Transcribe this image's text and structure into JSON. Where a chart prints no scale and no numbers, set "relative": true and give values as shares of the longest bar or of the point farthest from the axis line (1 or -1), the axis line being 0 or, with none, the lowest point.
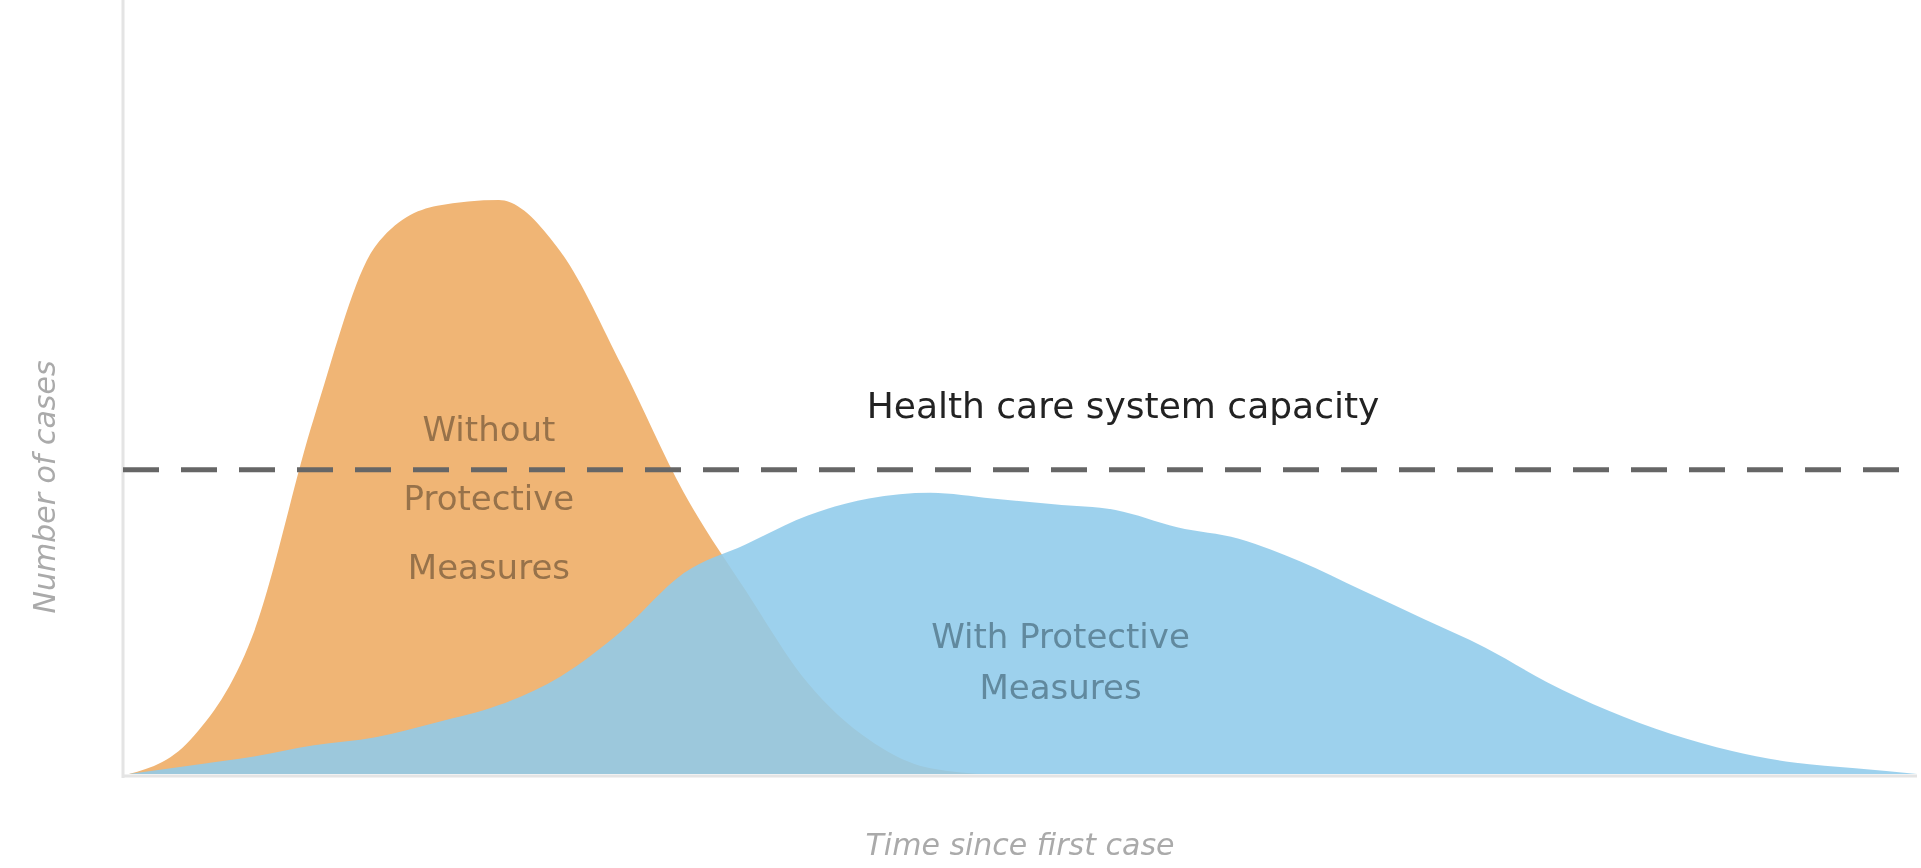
{
  "chart_data": {
    "type": "area",
    "relative": true,
    "xlabel": "Time since first case",
    "ylabel": "Number of cases",
    "categories": [
      null,
      null,
      null,
      null,
      null,
      null,
      null,
      null,
      null,
      null,
      null,
      null,
      null,
      null,
      null,
      null,
      null,
      null,
      null,
      null,
      null,
      null,
      null,
      null,
      null,
      null,
      null,
      null,
      null,
      null
    ],
    "series": [
      {
        "name": "Without Protective Measures",
        "color": "#f0b575",
        "values": [
          0,
          0.06,
          0.24,
          0.62,
          0.92,
          0.99,
          1.0,
          0.91,
          0.71,
          0.49,
          0.32,
          0.16,
          0.06,
          0.01,
          0,
          0,
          0,
          0,
          0,
          0,
          0,
          0,
          0,
          0,
          0,
          0,
          0,
          0,
          0,
          0
        ]
      },
      {
        "name": "With Protective Measures",
        "color": "#8fcbea",
        "values": [
          0,
          0.015,
          0.03,
          0.05,
          0.064,
          0.09,
          0.12,
          0.17,
          0.25,
          0.35,
          0.4,
          0.45,
          0.48,
          0.49,
          0.48,
          0.47,
          0.46,
          0.43,
          0.41,
          0.37,
          0.32,
          0.27,
          0.22,
          0.16,
          0.11,
          0.07,
          0.04,
          0.02,
          0.01,
          0
        ]
      }
    ],
    "ref_lines": [
      {
        "axis": "y",
        "value": 0.53,
        "label": "Health care system capacity",
        "color": "#666666",
        "line_style": "dashed"
      }
    ],
    "legend": false
  }
}
